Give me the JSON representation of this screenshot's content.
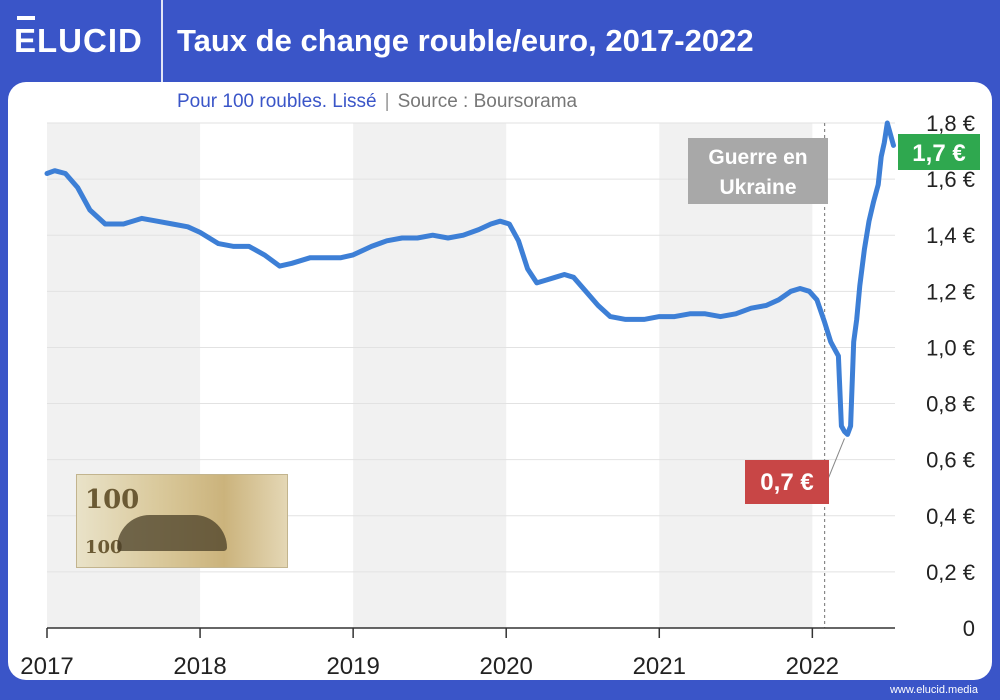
{
  "header": {
    "logo_text": "ELUCID",
    "title": "Taux de change rouble/euro, 2017-2022"
  },
  "subtitle": {
    "main": "Pour 100 roubles. Lissé",
    "separator": "|",
    "source": "Source : Boursorama"
  },
  "footer": {
    "url": "www.elucid.media"
  },
  "colors": {
    "brand": "#3a55c8",
    "line": "#3d7fd6",
    "band": "#f1f1f1",
    "green_badge": "#2fa84f",
    "red_badge": "#c84646",
    "war_badge": "#a8a8a8"
  },
  "chart_data": {
    "type": "line",
    "title": "Taux de change rouble/euro, 2017-2022",
    "subtitle": "Pour 100 roubles. Lissé | Source : Boursorama",
    "ylabel": "",
    "xlabel": "",
    "ylim": [
      0,
      1.8
    ],
    "xlim": [
      2017.0,
      2022.54
    ],
    "x_ticks": [
      "2017",
      "2018",
      "2019",
      "2020",
      "2021",
      "2022"
    ],
    "y_ticks": [
      "0",
      "0,2 €",
      "0,4 €",
      "0,6 €",
      "0,8 €",
      "1,0 €",
      "1,2 €",
      "1,4 €",
      "1,6 €",
      "1,8 €"
    ],
    "grid": true,
    "series": [
      {
        "x": [
          2017.0,
          2017.05,
          2017.12,
          2017.2,
          2017.28,
          2017.38,
          2017.5,
          2017.62,
          2017.72,
          2017.82,
          2017.92,
          2018.0,
          2018.12,
          2018.22,
          2018.32,
          2018.42,
          2018.52,
          2018.6,
          2018.72,
          2018.82,
          2018.92,
          2019.0,
          2019.12,
          2019.22,
          2019.32,
          2019.42,
          2019.52,
          2019.62,
          2019.72,
          2019.82,
          2019.9,
          2019.96,
          2020.02,
          2020.08,
          2020.14,
          2020.2,
          2020.26,
          2020.32,
          2020.38,
          2020.44,
          2020.52,
          2020.6,
          2020.68,
          2020.78,
          2020.9,
          2021.0,
          2021.1,
          2021.2,
          2021.3,
          2021.4,
          2021.5,
          2021.6,
          2021.7,
          2021.78,
          2021.86,
          2021.92,
          2021.98,
          2022.03,
          2022.08,
          2022.12,
          2022.15,
          2022.17,
          2022.19,
          2022.21,
          2022.23,
          2022.25,
          2022.27,
          2022.29,
          2022.31,
          2022.34,
          2022.37,
          2022.4,
          2022.43,
          2022.45,
          2022.47,
          2022.49,
          2022.51,
          2022.53
        ],
        "y": [
          1.62,
          1.63,
          1.62,
          1.57,
          1.49,
          1.44,
          1.44,
          1.46,
          1.45,
          1.44,
          1.43,
          1.41,
          1.37,
          1.36,
          1.36,
          1.33,
          1.29,
          1.3,
          1.32,
          1.32,
          1.32,
          1.33,
          1.36,
          1.38,
          1.39,
          1.39,
          1.4,
          1.39,
          1.4,
          1.42,
          1.44,
          1.45,
          1.44,
          1.38,
          1.28,
          1.23,
          1.24,
          1.25,
          1.26,
          1.25,
          1.2,
          1.15,
          1.11,
          1.1,
          1.1,
          1.11,
          1.11,
          1.12,
          1.12,
          1.11,
          1.12,
          1.14,
          1.15,
          1.17,
          1.2,
          1.21,
          1.2,
          1.17,
          1.09,
          1.02,
          0.99,
          0.97,
          0.72,
          0.7,
          0.69,
          0.72,
          1.02,
          1.1,
          1.22,
          1.35,
          1.45,
          1.52,
          1.58,
          1.68,
          1.73,
          1.8,
          1.76,
          1.72
        ]
      }
    ],
    "annotations": [
      {
        "label": "Guerre en Ukraine",
        "x": 2022.08
      },
      {
        "label": "0,7 €",
        "x": 2022.21,
        "y": 0.69
      },
      {
        "label": "1,7 €",
        "x": 2022.53,
        "y": 1.72
      }
    ]
  }
}
